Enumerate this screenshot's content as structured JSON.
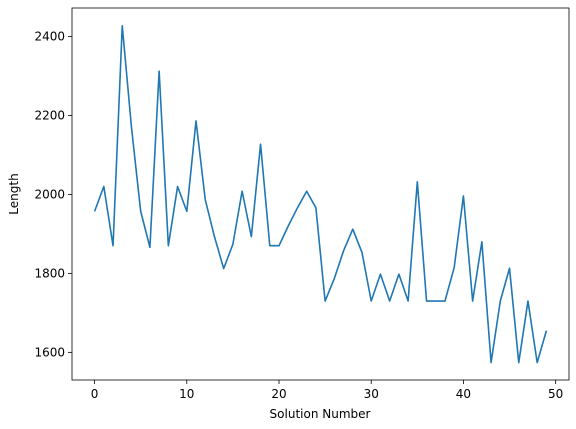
{
  "chart_data": {
    "type": "line",
    "title": "",
    "xlabel": "Solution Number",
    "ylabel": "Length",
    "xlim": [
      -2.45,
      51.45
    ],
    "ylim": [
      1530,
      2472
    ],
    "xticks": [
      0,
      10,
      20,
      30,
      40,
      50
    ],
    "yticks": [
      1600,
      1800,
      2000,
      2200,
      2400
    ],
    "grid": false,
    "legend": "none",
    "series": [
      {
        "color": "#1f77b4",
        "x": [
          0,
          1,
          2,
          3,
          4,
          5,
          6,
          7,
          8,
          9,
          10,
          11,
          12,
          13,
          14,
          15,
          16,
          17,
          18,
          19,
          20,
          21,
          22,
          23,
          24,
          25,
          26,
          27,
          28,
          29,
          30,
          31,
          32,
          33,
          34,
          35,
          36,
          37,
          38,
          39,
          40,
          41,
          42,
          43,
          44,
          45,
          46,
          47,
          48,
          49
        ],
        "values": [
          1957,
          2020,
          1870,
          2427,
          2170,
          1957,
          1866,
          2312,
          1870,
          2020,
          1957,
          2186,
          1987,
          1893,
          1812,
          1874,
          2008,
          1893,
          2127,
          1870,
          1870,
          1920,
          1966,
          2008,
          1966,
          1730,
          1787,
          1857,
          1912,
          1853,
          1730,
          1798,
          1730,
          1798,
          1730,
          2032,
          1730,
          1730,
          1730,
          1815,
          1996,
          1730,
          1880,
          1574,
          1730,
          1813,
          1574,
          1730,
          1574,
          1655
        ]
      }
    ]
  }
}
